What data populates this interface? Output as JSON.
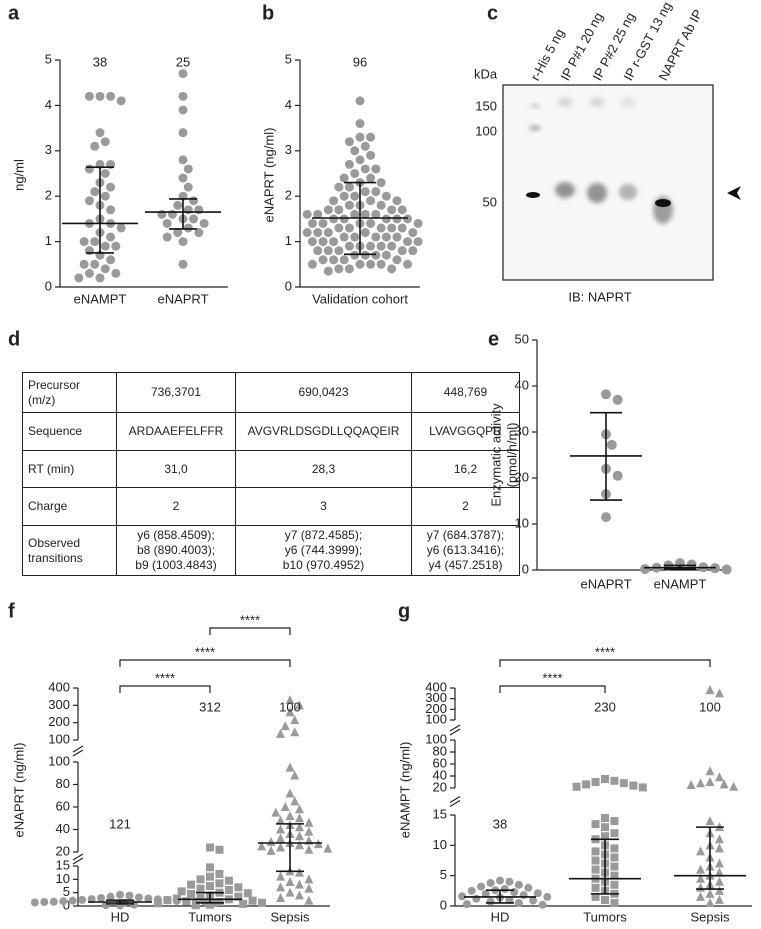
{
  "chart_data": [
    {
      "type": "dot",
      "panel": "a",
      "ylabel": "ng/ml",
      "ylim": [
        0,
        5
      ],
      "yticks": [
        0,
        1,
        2,
        3,
        4,
        5
      ],
      "groups": [
        {
          "name": "eNAMPT",
          "n": 38,
          "marker": "circle",
          "color": "#9a9a9a",
          "values": [
            4.2,
            4.2,
            4.2,
            4.1,
            3.4,
            3.2,
            3.1,
            2.7,
            2.7,
            2.6,
            2.5,
            2.3,
            2.2,
            2.1,
            2.0,
            1.9,
            1.8,
            1.7,
            1.5,
            1.4,
            1.4,
            1.3,
            1.2,
            1.1,
            1.0,
            1.0,
            0.9,
            0.9,
            0.8,
            0.7,
            0.6,
            0.5,
            0.5,
            0.4,
            0.3,
            0.3,
            0.2,
            0.2
          ],
          "median": 1.4,
          "lower": 0.75,
          "upper": 2.64
        },
        {
          "name": "eNAPRT",
          "n": 25,
          "marker": "circle",
          "color": "#9a9a9a",
          "values": [
            4.7,
            4.2,
            3.9,
            3.4,
            2.8,
            2.6,
            2.4,
            2.2,
            2.0,
            1.9,
            1.8,
            1.7,
            1.7,
            1.6,
            1.6,
            1.5,
            1.5,
            1.4,
            1.4,
            1.3,
            1.2,
            1.2,
            1.1,
            1.0,
            0.5
          ],
          "median": 1.65,
          "lower": 1.28,
          "upper": 1.94
        }
      ]
    },
    {
      "type": "dot",
      "panel": "b",
      "ylabel": "eNAPRT (ng/ml)",
      "ylim": [
        0,
        5
      ],
      "yticks": [
        0,
        1,
        2,
        3,
        4,
        5
      ],
      "groups": [
        {
          "name": "Validation cohort",
          "n": 96,
          "marker": "circle",
          "color": "#9a9a9a",
          "values": [
            4.1,
            3.6,
            3.3,
            3.3,
            3.2,
            3.1,
            3.0,
            2.9,
            2.8,
            2.7,
            2.6,
            2.6,
            2.5,
            2.4,
            2.4,
            2.3,
            2.3,
            2.2,
            2.2,
            2.1,
            2.1,
            2.0,
            2.0,
            2.0,
            1.9,
            1.9,
            1.9,
            1.8,
            1.8,
            1.8,
            1.7,
            1.7,
            1.7,
            1.7,
            1.6,
            1.6,
            1.6,
            1.6,
            1.5,
            1.5,
            1.5,
            1.5,
            1.5,
            1.4,
            1.4,
            1.4,
            1.4,
            1.4,
            1.3,
            1.3,
            1.3,
            1.3,
            1.3,
            1.2,
            1.2,
            1.2,
            1.2,
            1.2,
            1.1,
            1.1,
            1.1,
            1.1,
            1.1,
            1.0,
            1.0,
            1.0,
            1.0,
            1.0,
            0.9,
            0.9,
            0.9,
            0.9,
            0.9,
            0.8,
            0.8,
            0.8,
            0.8,
            0.8,
            0.7,
            0.7,
            0.7,
            0.7,
            0.6,
            0.6,
            0.6,
            0.6,
            0.5,
            0.5,
            0.5,
            0.5,
            0.4,
            0.4,
            0.4,
            0.35,
            0.5,
            1.6
          ],
          "median": 1.52,
          "lower": 0.72,
          "upper": 2.3
        }
      ]
    },
    {
      "type": "dot",
      "panel": "e",
      "ylabel": [
        "Enzymatic activity",
        "(pmol/h/ml)"
      ],
      "ylim": [
        0,
        50
      ],
      "yticks": [
        0,
        10,
        20,
        30,
        40,
        50
      ],
      "groups": [
        {
          "name": "eNAPRT",
          "marker": "circle",
          "color": "#9a9a9a",
          "values": [
            38.2,
            37.0,
            29.5,
            27.2,
            22.0,
            20.5,
            16.5,
            11.5
          ],
          "median": 24.8,
          "lower": 15.2,
          "upper": 34.2
        },
        {
          "name": "eNAMPT",
          "marker": "circle",
          "color": "#9a9a9a",
          "values": [
            1.5,
            1.2,
            1.0,
            0.6,
            0.5,
            0.4,
            0.2,
            0.1
          ],
          "median": 0.5,
          "lower": 0.2,
          "upper": 1.0
        }
      ]
    },
    {
      "type": "dot",
      "panel": "f",
      "ylabel": "eNAPRT (ng/ml)",
      "y_segments": [
        {
          "ylim": [
            0,
            15
          ],
          "yticks": [
            0,
            5,
            10,
            15
          ]
        },
        {
          "ylim": [
            20,
            100
          ],
          "yticks": [
            20,
            40,
            60,
            80,
            100
          ]
        },
        {
          "ylim": [
            100,
            400
          ],
          "yticks": [
            100,
            200,
            300,
            400
          ]
        }
      ],
      "significance": [
        "****",
        "****",
        "****"
      ],
      "groups": [
        {
          "name": "HD",
          "n": 121,
          "marker": "circle",
          "color": "#9a9a9a",
          "values": [
            4.2,
            3.9,
            3.5,
            3.2,
            3.0,
            2.8,
            2.6,
            2.5,
            2.3,
            2.2,
            2.0,
            1.9,
            1.8,
            1.7,
            1.6,
            1.5,
            1.5,
            1.4,
            1.3,
            1.2,
            1.1,
            1.0,
            0.9,
            0.8,
            0.7,
            0.6,
            0.5,
            0.4,
            0.3,
            0.2
          ],
          "median": 1.5,
          "lower": 0.8,
          "upper": 2.2
        },
        {
          "name": "Tumors",
          "n": 312,
          "marker": "square",
          "color": "#9a9a9a",
          "values": [
            24,
            22,
            14.5,
            12,
            11,
            10,
            9.5,
            8.5,
            8,
            7.5,
            7,
            6.5,
            6,
            5.5,
            5,
            4.8,
            4.5,
            4,
            3.5,
            3,
            2.8,
            2.5,
            2.2,
            2,
            1.8,
            1.5,
            1.2,
            1,
            0.8,
            0.5,
            0.3
          ],
          "median": 2.5,
          "lower": 1.2,
          "upper": 5.0
        },
        {
          "name": "Sepsis",
          "n": 100,
          "marker": "triangle",
          "color": "#9a9a9a",
          "values": [
            330,
            300,
            260,
            215,
            180,
            145,
            135,
            95,
            88,
            72,
            65,
            60,
            58,
            55,
            52,
            50,
            48,
            46,
            44,
            42,
            40,
            38,
            36,
            34,
            32,
            30,
            29,
            28,
            27,
            26,
            25,
            24,
            23,
            22,
            21,
            13,
            12.5,
            11,
            10,
            9,
            8,
            7,
            6.5,
            5,
            4,
            3,
            2
          ],
          "median": 28,
          "lower": 13,
          "upper": 45
        }
      ]
    },
    {
      "type": "dot",
      "panel": "g",
      "ylabel": "eNAMPT (ng/ml)",
      "y_segments": [
        {
          "ylim": [
            0,
            15
          ],
          "yticks": [
            0,
            5,
            10,
            15
          ]
        },
        {
          "ylim": [
            20,
            100
          ],
          "yticks": [
            20,
            40,
            60,
            80,
            100
          ]
        },
        {
          "ylim": [
            100,
            400
          ],
          "yticks": [
            100,
            200,
            300,
            400
          ]
        }
      ],
      "significance": [
        "****",
        "****"
      ],
      "groups": [
        {
          "name": "HD",
          "n": 38,
          "marker": "circle",
          "color": "#9a9a9a",
          "values": [
            4.2,
            4.0,
            3.8,
            3.5,
            3.2,
            3.0,
            2.8,
            2.6,
            2.5,
            2.3,
            2.1,
            2.0,
            1.8,
            1.6,
            1.5,
            1.4,
            1.2,
            1.0,
            0.9,
            0.7,
            0.5,
            0.3,
            0.2
          ],
          "median": 1.5,
          "lower": 0.5,
          "upper": 2.6
        },
        {
          "name": "Tumors",
          "n": 230,
          "marker": "square",
          "color": "#9a9a9a",
          "values": [
            35,
            32,
            30,
            28,
            26,
            24,
            22,
            21,
            14.5,
            14,
            13.5,
            13,
            12,
            11.5,
            11,
            10,
            9.5,
            9,
            8.5,
            8,
            7.5,
            7,
            6.5,
            6,
            5.5,
            5,
            4.5,
            4,
            3.5,
            3,
            2.5,
            2,
            1.5,
            1,
            0.5
          ],
          "median": 4.5,
          "lower": 2.0,
          "upper": 11
        },
        {
          "name": "Sepsis",
          "n": 100,
          "marker": "triangle",
          "color": "#9a9a9a",
          "values": [
            380,
            350,
            48,
            38,
            30,
            28,
            26,
            25,
            22,
            14,
            13,
            12,
            11,
            10,
            9.5,
            9,
            8,
            7,
            6.5,
            6,
            5.5,
            5,
            4.5,
            4,
            3.5,
            3,
            2.5,
            2,
            1.5,
            1,
            0.5
          ],
          "median": 5,
          "lower": 2.8,
          "upper": 13
        }
      ]
    }
  ],
  "blot": {
    "panel": "c",
    "kda": "kDa",
    "markers": [
      150,
      100,
      50
    ],
    "lanes": [
      "r-His 5 ng",
      "IP P#1 20 ng",
      "IP P#2 25 ng",
      "IP r-GST 13 ng",
      "NAPRT Ab IP"
    ],
    "label": "IB: NAPRT"
  },
  "table": {
    "panel": "d",
    "rows": [
      [
        "Precursor\n(m/z)",
        "736,3701",
        "690,0423",
        "448,769"
      ],
      [
        "Sequence",
        "ARDAAEFELFFR",
        "AVGVRLDSGDLLQQAQEIR",
        "LVAVGGQPR"
      ],
      [
        "RT (min)",
        "31,0",
        "28,3",
        "16,2"
      ],
      [
        "Charge",
        "2",
        "3",
        "2"
      ],
      [
        "Observed\ntransitions",
        "y6 (858.4509);\nb8 (890.4003);\nb9 (1003.4843)",
        "y7 (872.4585);\ny6 (744.3999);\nb10 (970.4952)",
        "y7 (684.3787);\ny6 (613.3416);\ny4 (457.2518)"
      ]
    ]
  }
}
